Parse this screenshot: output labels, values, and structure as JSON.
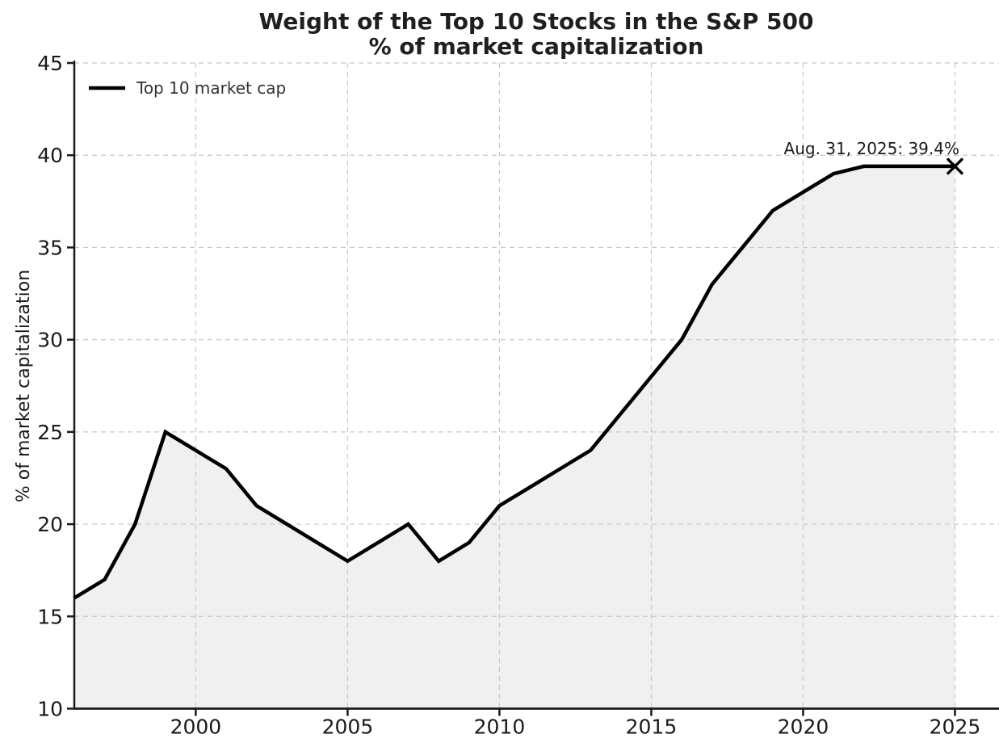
{
  "colors": {
    "background": "#ffffff",
    "line": "#000000",
    "area_fill": "#f0f0f0",
    "grid": "#c8c8c8",
    "axis": "#1a1a1a",
    "text": "#1a1a1a",
    "marker": "#000000"
  },
  "chart_data": {
    "type": "area",
    "title": "Weight of the Top 10 Stocks in the S&P 500",
    "subtitle": "% of market capitalization",
    "xlabel": "",
    "ylabel": "% of market capitalization",
    "xlim": [
      1996,
      2026.45
    ],
    "ylim": [
      10,
      45
    ],
    "x_ticks": [
      2000,
      2005,
      2010,
      2015,
      2020,
      2025
    ],
    "y_ticks": [
      10,
      15,
      20,
      25,
      30,
      35,
      40,
      45
    ],
    "grid": "dashed, both axes, drawn over area fill",
    "legend_position": "upper-left, frameless",
    "series": [
      {
        "name": "Top 10 market cap",
        "x": [
          1996,
          1997,
          1998,
          1999,
          2000,
          2001,
          2002,
          2003,
          2004,
          2005,
          2006,
          2007,
          2008,
          2009,
          2010,
          2011,
          2012,
          2013,
          2014,
          2015,
          2016,
          2017,
          2018,
          2019,
          2020,
          2021,
          2022,
          2023,
          2024,
          2025
        ],
        "values": [
          16,
          17,
          20,
          25,
          24,
          23,
          21,
          20,
          19,
          18,
          19,
          20,
          18,
          19,
          21,
          22,
          23,
          24,
          26,
          28,
          30,
          33,
          35,
          37,
          38,
          39,
          39.4,
          39.4,
          39.4,
          39.4
        ]
      }
    ],
    "annotation": {
      "text": "Aug. 31, 2025: 39.4%",
      "x": 2025,
      "y": 39.4,
      "marker": "x"
    }
  }
}
